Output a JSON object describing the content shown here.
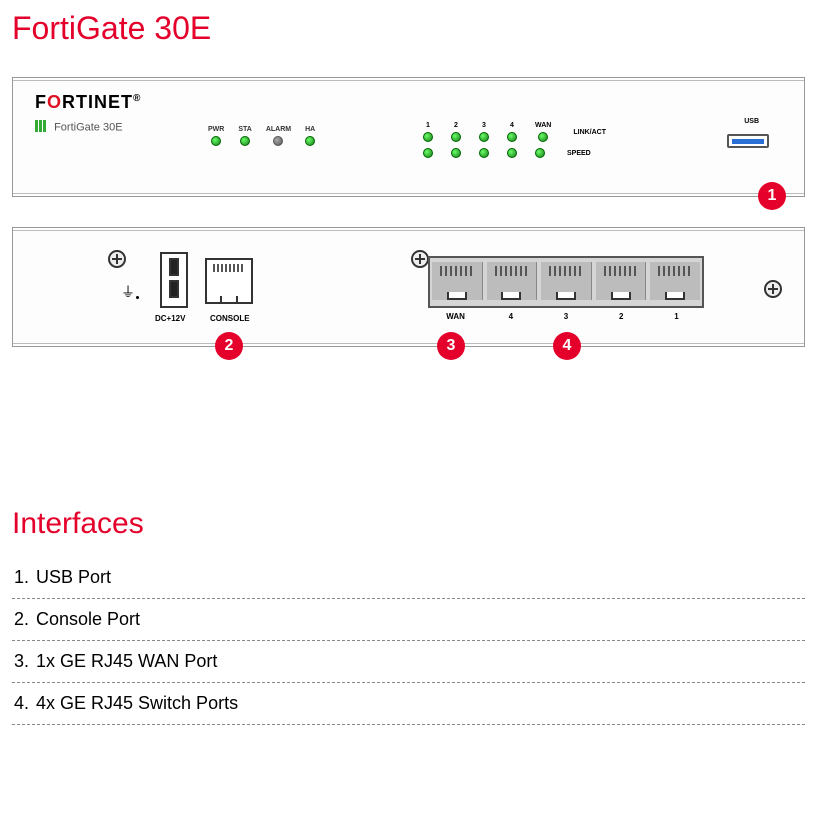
{
  "title": "FortiGate 30E",
  "title_color": "#e4002b",
  "section_title": "Interfaces",
  "section_color": "#e4002b",
  "brand_plain1": "F",
  "brand_red": "O",
  "brand_plain2": "RTINET",
  "subbrand": "FortiGate 30E",
  "front": {
    "status_leds": [
      {
        "label": "PWR",
        "state": "green"
      },
      {
        "label": "STA",
        "state": "green"
      },
      {
        "label": "ALARM",
        "state": "dark"
      },
      {
        "label": "HA",
        "state": "green"
      }
    ],
    "port_numbers": [
      "1",
      "2",
      "3",
      "4",
      "WAN"
    ],
    "side_labels": {
      "top": "LINK/ACT",
      "bot": "SPEED"
    },
    "usb_label": "USB"
  },
  "rear": {
    "dc_label": "DC+12V",
    "console_label": "CONSOLE",
    "switch_labels": [
      "WAN",
      "4",
      "3",
      "2",
      "1"
    ]
  },
  "callouts": {
    "c1": "1",
    "c2": "2",
    "c3": "3",
    "c4": "4",
    "bg": "#e4002b"
  },
  "interfaces": [
    "USB Port",
    "Console Port",
    "1x GE RJ45 WAN Port",
    "4x GE RJ45 Switch Ports"
  ]
}
